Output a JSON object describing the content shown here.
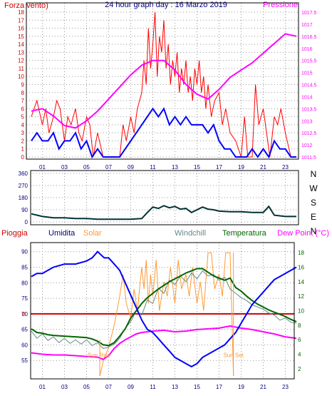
{
  "colors": {
    "wind": "#ff0000",
    "wind_avg": "#0000ff",
    "pressure": "#ff00ff",
    "direction": "#003333",
    "humidity": "#0000ff",
    "solar": "#ff9933",
    "windchill": "#668888",
    "temperature": "#006600",
    "dewpoint": "#ff00ff",
    "rain_line": "#cc0000",
    "axis_left": "#cc0000",
    "axis_dark": "#000080",
    "axis_right_temp": "#006600",
    "frame": "#000000",
    "grid": "#999999"
  },
  "chart_data": [
    {
      "type": "line",
      "title": "24 hour graph day : 16 Marzo 2019",
      "left_label": "Forza vento)",
      "right_label": "Pressione",
      "x_ticks": [
        "01",
        "03",
        "05",
        "07",
        "09",
        "11",
        "13",
        "15",
        "17",
        "19",
        "21",
        "23"
      ],
      "x_range_hours": [
        0,
        24
      ],
      "ylim_left": [
        0,
        18
      ],
      "left_ticks": [
        "0",
        "1",
        "2",
        "3",
        "4",
        "5",
        "6",
        "7",
        "8",
        "9",
        "10",
        "11",
        "12",
        "13",
        "14",
        "15",
        "16",
        "17",
        "18"
      ],
      "ylim_right": [
        1011.5,
        1017.5
      ],
      "right_ticks": [
        "1011.5",
        "1012",
        "1012.5",
        "1013",
        "1013.5",
        "1014",
        "1014.5",
        "1015",
        "1015.5",
        "1016",
        "1016.5",
        "1017",
        "1017.5"
      ],
      "grid": true,
      "series": [
        {
          "name": "Forza vento)",
          "role": "wind_gust",
          "x": [
            0,
            0.5,
            1,
            1.3,
            1.6,
            2,
            2.3,
            2.6,
            3,
            3.3,
            3.6,
            4,
            4.3,
            4.6,
            5,
            5.3,
            5.6,
            6,
            6.5,
            7,
            7.5,
            8,
            8.3,
            8.6,
            9,
            9.3,
            9.6,
            10,
            10.2,
            10.4,
            10.6,
            10.8,
            11,
            11.2,
            11.4,
            11.6,
            11.8,
            12,
            12.2,
            12.4,
            12.6,
            12.8,
            13,
            13.2,
            13.4,
            13.6,
            13.8,
            14,
            14.2,
            14.4,
            14.6,
            14.8,
            15,
            15.2,
            15.4,
            15.6,
            15.8,
            16,
            16.3,
            16.6,
            17,
            17.3,
            17.6,
            18,
            18.5,
            19,
            19.3,
            19.6,
            20,
            20.3,
            20.6,
            21,
            21.3,
            21.6,
            22,
            22.3,
            22.6,
            23,
            23.5,
            24
          ],
          "values": [
            5,
            7,
            4,
            6,
            3,
            5,
            7,
            6,
            2,
            5,
            4,
            6,
            3,
            2,
            5,
            4,
            0,
            3,
            0,
            0,
            0,
            0,
            4,
            2,
            5,
            3,
            6,
            8,
            12,
            9,
            16,
            11,
            14,
            18,
            10,
            15,
            13,
            17,
            11,
            14,
            9,
            12,
            10,
            13,
            8,
            11,
            9,
            12,
            8,
            10,
            7,
            11,
            9,
            12,
            8,
            10,
            6,
            9,
            5,
            7,
            8,
            4,
            6,
            3,
            2,
            0,
            5,
            0,
            0,
            9,
            4,
            6,
            3,
            0,
            5,
            4,
            6,
            3,
            0,
            0
          ],
          "ylim_side": "left"
        },
        {
          "name": "",
          "role": "wind_avg",
          "x": [
            0,
            0.5,
            1,
            1.5,
            2,
            2.5,
            3,
            3.5,
            4,
            4.5,
            5,
            5.5,
            6,
            6.5,
            7,
            7.5,
            8,
            8.5,
            9,
            9.5,
            10,
            10.5,
            11,
            11.5,
            12,
            12.5,
            13,
            13.5,
            14,
            14.5,
            15,
            15.5,
            16,
            16.5,
            17,
            17.5,
            18,
            18.5,
            19,
            19.5,
            20,
            20.5,
            21,
            21.5,
            22,
            22.5,
            23,
            23.5,
            24
          ],
          "values": [
            2,
            3,
            2,
            2,
            3,
            1,
            2,
            2,
            3,
            1,
            2,
            0,
            1,
            0,
            0,
            0,
            0,
            1,
            2,
            3,
            4,
            5,
            6,
            5,
            6,
            4,
            5,
            4,
            5,
            4,
            4,
            4,
            3,
            4,
            2,
            1,
            1,
            0,
            0,
            0,
            1,
            0,
            1,
            0,
            2,
            1,
            1,
            0,
            0
          ],
          "ylim_side": "left"
        },
        {
          "name": "Pressione",
          "role": "pressure",
          "x": [
            0,
            1,
            2,
            3,
            4,
            5,
            6,
            7,
            8,
            9,
            10,
            11,
            12,
            13,
            14,
            15,
            16,
            17,
            18,
            19,
            20,
            21,
            22,
            23,
            24
          ],
          "values": [
            1013.4,
            1013.5,
            1013.2,
            1012.8,
            1012.7,
            1013.0,
            1013.4,
            1013.9,
            1014.4,
            1014.9,
            1015.3,
            1015.5,
            1015.5,
            1015.1,
            1014.5,
            1014.1,
            1013.9,
            1014.3,
            1014.8,
            1015.1,
            1015.4,
            1015.8,
            1016.2,
            1016.6,
            1016.5
          ],
          "ylim_side": "right"
        }
      ]
    },
    {
      "type": "line",
      "left_ticks": [
        "0",
        "90",
        "180",
        "270",
        "360"
      ],
      "ylim": [
        0,
        360
      ],
      "right_labels": [
        "N",
        "W",
        "S",
        "E",
        "N"
      ],
      "grid": true,
      "series": [
        {
          "name": "",
          "role": "direction",
          "x": [
            0,
            1,
            2,
            3,
            4,
            5,
            6,
            7,
            8,
            9,
            10,
            10.5,
            11,
            11.5,
            12,
            12.5,
            13,
            13.5,
            14,
            14.5,
            15,
            15.5,
            16,
            16.5,
            17,
            18,
            19,
            20,
            21,
            21.5,
            22,
            23,
            24
          ],
          "values": [
            60,
            40,
            30,
            30,
            25,
            25,
            20,
            20,
            20,
            20,
            25,
            70,
            110,
            100,
            120,
            105,
            115,
            95,
            100,
            70,
            90,
            110,
            95,
            90,
            80,
            75,
            75,
            70,
            70,
            115,
            50,
            40,
            40
          ]
        }
      ]
    },
    {
      "type": "line",
      "x_ticks": [
        "01",
        "03",
        "05",
        "07",
        "09",
        "11",
        "13",
        "15",
        "17",
        "19",
        "21",
        "23"
      ],
      "x_range_hours": [
        0,
        24
      ],
      "ylim_left": [
        50,
        92
      ],
      "left_ticks": [
        "55",
        "60",
        "65",
        "70",
        "75",
        "80",
        "85",
        "90"
      ],
      "ylim_right": [
        1,
        19
      ],
      "right_ticks": [
        "2",
        "4",
        "6",
        "8",
        "10",
        "12",
        "14",
        "16",
        "18"
      ],
      "headers": [
        "Pioggia",
        "Umidita",
        "Solar",
        "Windchill",
        "Temperatura",
        "Dew Point (°C)"
      ],
      "zero_marker": "0",
      "annotations": [
        "Sun Rise",
        "Sun Set"
      ],
      "grid": true,
      "series": [
        {
          "name": "Umidita",
          "role": "humidity",
          "ylim_side": "left",
          "x": [
            0,
            0.5,
            1,
            2,
            3,
            4,
            5,
            5.5,
            6,
            6.3,
            6.6,
            7,
            7.5,
            8,
            8.5,
            9,
            9.5,
            10,
            10.5,
            11,
            11.5,
            12,
            12.5,
            13,
            13.5,
            14,
            14.5,
            15,
            15.5,
            16,
            16.5,
            17,
            17.5,
            18,
            18.5,
            19,
            19.5,
            20,
            20.5,
            21,
            21.5,
            22,
            22.5,
            23,
            23.5,
            24
          ],
          "values": [
            82,
            83,
            83,
            85,
            86,
            86,
            87,
            88,
            90,
            89,
            88,
            88,
            86,
            84,
            80,
            76,
            72,
            68,
            65,
            64,
            62,
            60,
            58,
            56,
            55,
            54,
            53,
            54,
            56,
            57,
            58,
            59,
            60,
            62,
            64,
            67,
            70,
            73,
            75,
            77,
            79,
            81,
            82,
            83,
            84,
            85
          ]
        },
        {
          "name": "Temperatura",
          "role": "temperature",
          "ylim_side": "right",
          "x": [
            0,
            0.5,
            1,
            1.5,
            2,
            3,
            4,
            5,
            5.5,
            6,
            6.5,
            7,
            7.5,
            8,
            8.5,
            9,
            9.5,
            10,
            10.5,
            11,
            11.5,
            12,
            12.5,
            13,
            13.5,
            14,
            14.5,
            15,
            15.5,
            16,
            16.5,
            17,
            17.5,
            18,
            18.5,
            19,
            19.5,
            20,
            20.5,
            21,
            21.5,
            22,
            22.5,
            23,
            23.5,
            24
          ],
          "values": [
            7.5,
            7.0,
            6.9,
            6.7,
            6.6,
            6.5,
            6.4,
            6.3,
            6.1,
            5.8,
            5.3,
            5.2,
            5.6,
            6.5,
            7.5,
            9.0,
            10.0,
            11.0,
            11.8,
            12.4,
            13.0,
            13.5,
            14.0,
            14.4,
            14.8,
            15.2,
            15.5,
            15.8,
            15.8,
            15.3,
            14.8,
            14.5,
            14.2,
            14.5,
            13.2,
            12.7,
            12.0,
            11.4,
            10.9,
            10.5,
            10.1,
            9.8,
            9.5,
            9.2,
            8.8,
            8.5
          ]
        },
        {
          "name": "Windchill",
          "role": "windchill",
          "ylim_side": "right",
          "x": [
            0,
            0.5,
            1,
            1.5,
            2,
            2.5,
            3,
            3.5,
            4,
            4.5,
            5,
            5.5,
            6,
            6.5,
            7,
            7.5,
            8,
            8.5,
            9,
            9.5,
            10,
            10.5,
            11,
            11.5,
            12,
            12.5,
            13,
            13.5,
            14,
            14.5,
            15,
            15.5,
            16,
            16.5,
            17,
            17.5,
            18,
            18.5,
            19,
            19.5,
            20,
            20.5,
            21,
            21.5,
            22,
            22.5,
            23,
            23.5,
            24
          ],
          "values": [
            7.2,
            6.2,
            6.8,
            5.9,
            6.4,
            5.6,
            6.2,
            5.5,
            6.0,
            5.4,
            6.0,
            5.2,
            5.6,
            4.8,
            5.0,
            5.4,
            6.2,
            7.6,
            8.5,
            10.0,
            9.4,
            11.5,
            11.0,
            13.1,
            12.4,
            14.2,
            13.6,
            14.8,
            14.0,
            15.2,
            14.4,
            15.5,
            14.8,
            15.0,
            14.2,
            14.6,
            13.0,
            12.4,
            11.8,
            11.4,
            10.8,
            10.5,
            10.2,
            9.7,
            9.4,
            8.7,
            9.0,
            8.4,
            8.3
          ]
        },
        {
          "name": "Dew Point (°C)",
          "role": "dewpoint",
          "ylim_side": "right",
          "x": [
            0,
            1,
            2,
            3,
            4,
            5,
            6,
            6.5,
            7,
            7.5,
            8,
            8.5,
            9,
            9.5,
            10,
            11,
            12,
            13,
            14,
            15,
            16,
            17,
            18,
            19,
            20,
            21,
            22,
            23,
            24
          ],
          "values": [
            4.2,
            4.0,
            3.9,
            3.9,
            3.8,
            3.7,
            3.6,
            3.3,
            3.8,
            4.8,
            5.5,
            6.0,
            6.4,
            6.8,
            7.0,
            7.2,
            7.3,
            7.1,
            7.2,
            7.4,
            7.5,
            7.6,
            7.9,
            7.6,
            7.4,
            7.1,
            6.8,
            6.4,
            6.2
          ]
        },
        {
          "name": "Solar",
          "role": "solar",
          "ylim_side": "right",
          "x": [
            6.2,
            6.5,
            7,
            7.5,
            8,
            8.3,
            8.6,
            9,
            9.3,
            9.6,
            10,
            10.2,
            10.4,
            10.6,
            10.8,
            11,
            11.3,
            11.6,
            12,
            12.3,
            12.6,
            13,
            13.3,
            13.6,
            14,
            14.3,
            14.6,
            15,
            15.3,
            15.6,
            16,
            16.3,
            16.6,
            17,
            17.3,
            17.6,
            18,
            18.3
          ],
          "values": [
            1,
            3,
            5,
            8,
            12,
            15,
            11,
            9,
            13,
            10,
            16,
            13,
            17,
            11,
            15,
            12,
            17,
            10,
            14,
            12,
            16,
            11,
            17,
            13,
            15,
            12,
            16,
            11,
            14,
            10,
            18,
            18,
            13,
            15,
            12,
            18,
            18,
            1
          ]
        },
        {
          "name": "Pioggia",
          "role": "rain",
          "ylim_side": "right",
          "x": [
            0,
            24
          ],
          "values": [
            0,
            0
          ]
        }
      ]
    }
  ]
}
